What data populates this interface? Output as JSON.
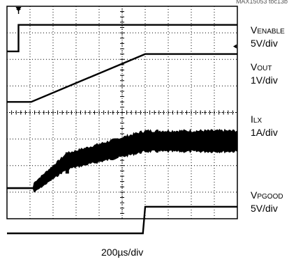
{
  "figure_id": "MAX15053 toc13b",
  "trigger_marker": "T",
  "chart_data": {
    "type": "line",
    "title": "",
    "xlabel": "200µs/div",
    "x_divisions": 10,
    "y_divisions": 8,
    "grid": true,
    "x_unit": "µs",
    "x_per_div": 200,
    "series": [
      {
        "name": "VENABLE",
        "label_main": "V",
        "label_sub": "ENABLE",
        "scale": "5V/div",
        "x": [
          0,
          100,
          100,
          2000
        ],
        "y": [
          0,
          0,
          5,
          5
        ],
        "baseline_div": 6.3,
        "volts_per_div": 5,
        "noisy": false
      },
      {
        "name": "VOUT",
        "label_main": "V",
        "label_sub": "OUT",
        "scale": "1V/div",
        "x": [
          0,
          210,
          1200,
          2000
        ],
        "y": [
          0,
          0,
          1.8,
          1.8
        ],
        "baseline_div": 4.4,
        "volts_per_div": 1,
        "noisy": false
      },
      {
        "name": "ILX",
        "label_main": "I",
        "label_sub": "LX",
        "scale": "1A/div",
        "x": [
          0,
          230,
          520,
          1200,
          2000
        ],
        "y": [
          0,
          0,
          1.0,
          1.75,
          1.75
        ],
        "baseline_div": 1.15,
        "volts_per_div": 1,
        "noisy": true
      },
      {
        "name": "VPGOOD",
        "label_main": "V",
        "label_sub": "PGOOD",
        "scale": "5V/div",
        "x": [
          0,
          1180,
          1200,
          2000
        ],
        "y": [
          0,
          0,
          5,
          5
        ],
        "baseline_div": -0.55,
        "volts_per_div": 5,
        "noisy": false
      }
    ]
  }
}
